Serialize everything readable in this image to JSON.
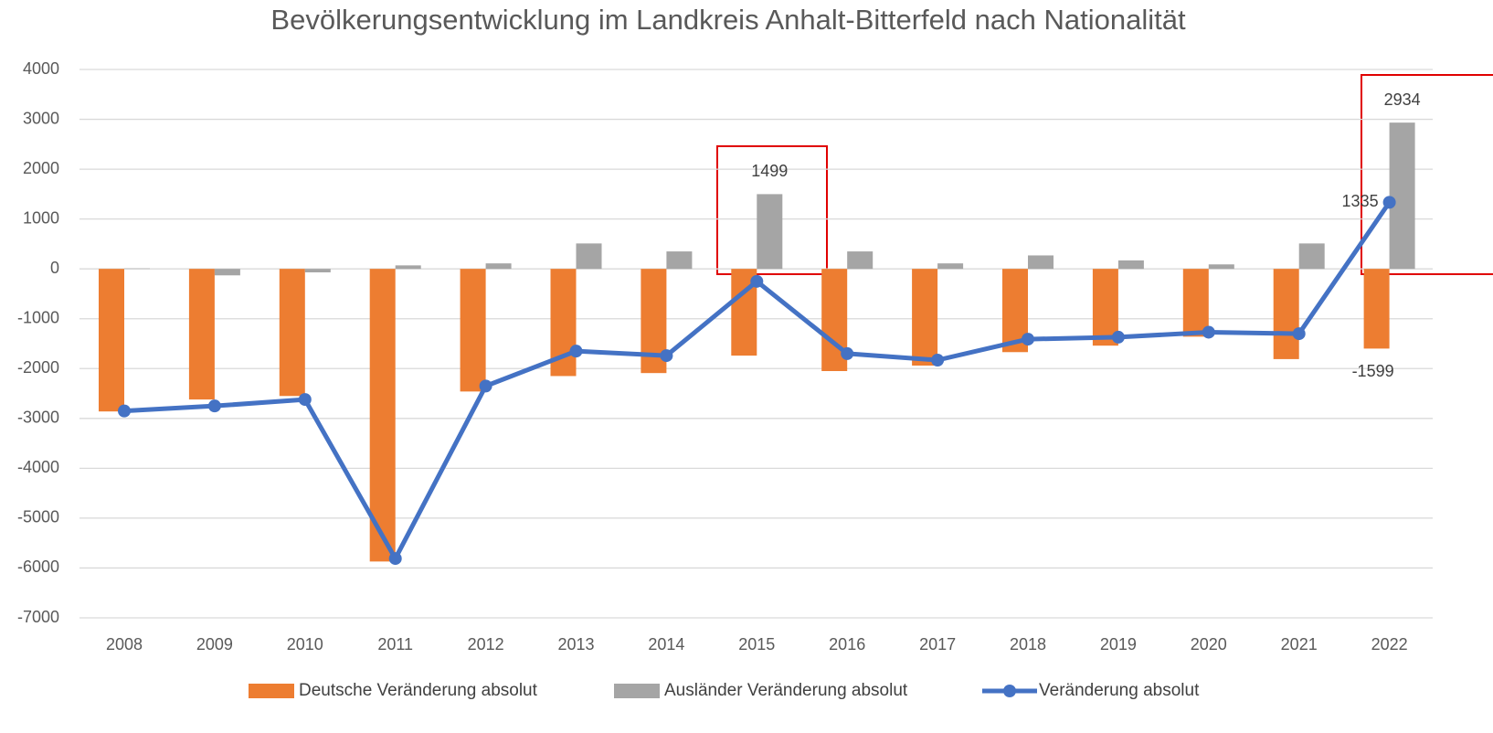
{
  "chart_data": {
    "type": "bar_line",
    "title": "Bevölkerungsentwicklung im Landkreis Anhalt-Bitterfeld nach Nationalität",
    "categories": [
      "2008",
      "2009",
      "2010",
      "2011",
      "2012",
      "2013",
      "2014",
      "2015",
      "2016",
      "2017",
      "2018",
      "2019",
      "2020",
      "2021",
      "2022"
    ],
    "series": [
      {
        "name": "Deutsche Veränderung absolut",
        "type": "bar",
        "color": "#ed7d31",
        "values": [
          -2860,
          -2620,
          -2550,
          -5870,
          -2460,
          -2150,
          -2090,
          -1740,
          -2050,
          -1940,
          -1670,
          -1540,
          -1360,
          -1810,
          -1599
        ],
        "labeled_points": [
          14
        ]
      },
      {
        "name": "Ausländer Veränderung absolut",
        "type": "bar",
        "color": "#a5a5a5",
        "values": [
          10,
          -130,
          -70,
          70,
          110,
          510,
          350,
          1499,
          350,
          110,
          270,
          170,
          90,
          510,
          2934
        ],
        "labeled_points": [
          7,
          14
        ]
      },
      {
        "name": "Veränderung absolut",
        "type": "line",
        "color": "#4472c4",
        "values": [
          -2850,
          -2750,
          -2620,
          -5810,
          -2350,
          -1650,
          -1740,
          -250,
          -1700,
          -1830,
          -1410,
          -1370,
          -1270,
          -1300,
          1335
        ],
        "labeled_points": [
          14
        ]
      }
    ],
    "ylim": [
      -7000,
      4000
    ],
    "yticks": [
      -7000,
      -6000,
      -5000,
      -4000,
      -3000,
      -2000,
      -1000,
      0,
      1000,
      2000,
      3000,
      4000
    ],
    "grid": true,
    "legend": "bottom"
  }
}
